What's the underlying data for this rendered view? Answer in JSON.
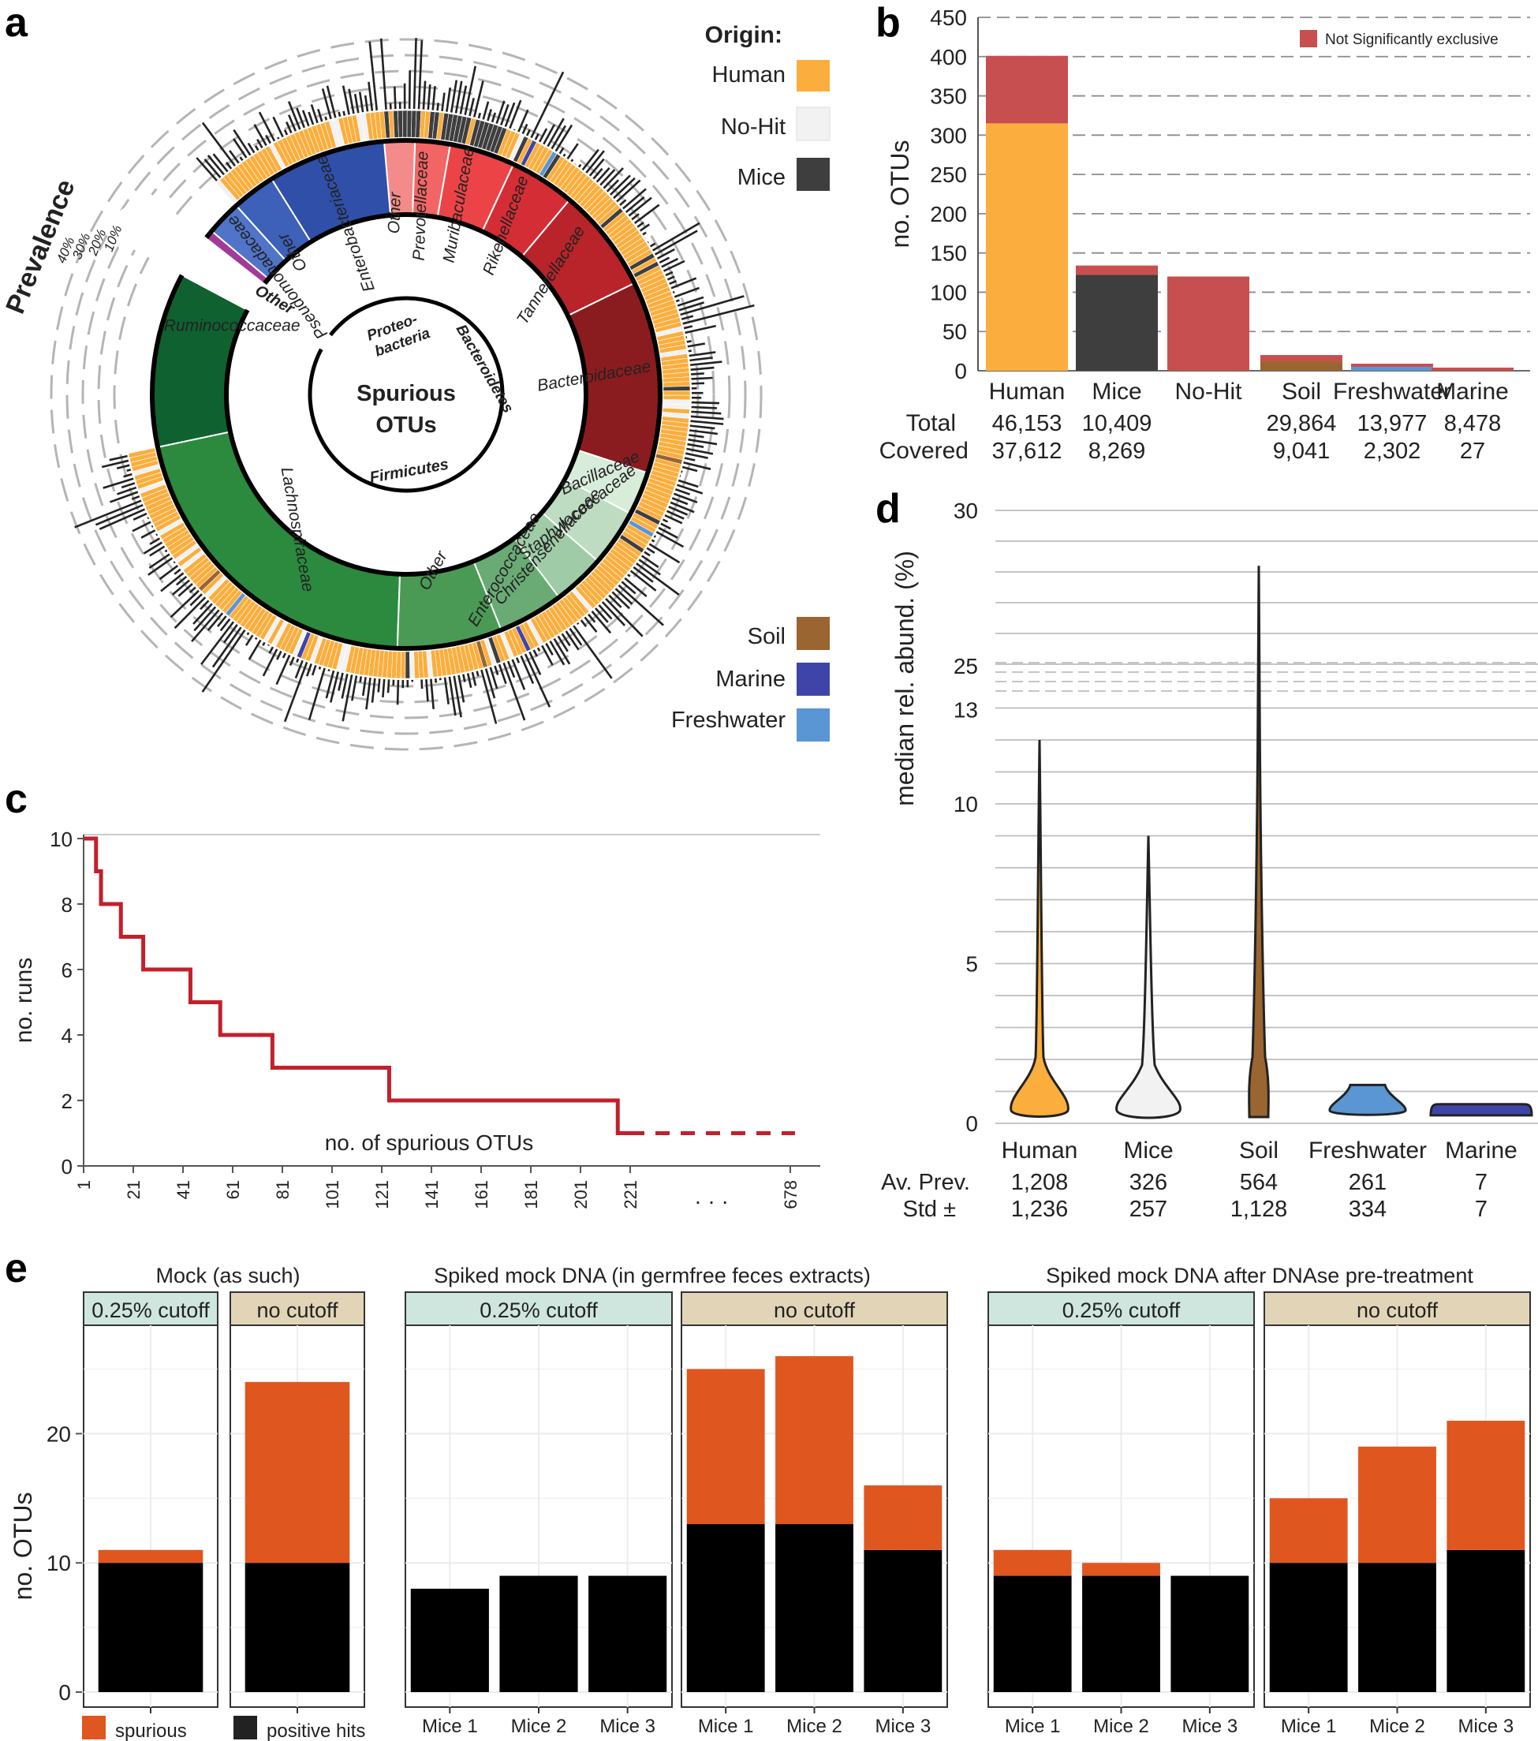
{
  "panel_labels": [
    "a",
    "b",
    "c",
    "d",
    "e"
  ],
  "colors": {
    "human": "#fbae3d",
    "nohit": "#f2f2f2",
    "mice": "#3e3e3e",
    "soil": "#9a6530",
    "marine": "#3f45a8",
    "freshwater": "#5a95d4",
    "not_sig": "#c84f4f",
    "red_line": "#c2202c",
    "spurious": "#e0561f",
    "positive": "#000000",
    "strip_cut": "#cfe6df",
    "strip_nocut": "#e2d5b7"
  },
  "panel_a": {
    "center_title_1": "Spurious",
    "center_title_2": "OTUs",
    "prevalence_label": "Prevalence",
    "prevalence_ticks": [
      "40%",
      "30%",
      "20%",
      "10%"
    ],
    "legend_title": "Origin:",
    "legend_top": [
      {
        "label": "Human",
        "color": "#fbae3d"
      },
      {
        "label": "No-Hit",
        "color": "#f2f2f2"
      },
      {
        "label": "Mice",
        "color": "#3e3e3e"
      }
    ],
    "legend_bottom": [
      {
        "label": "Soil",
        "color": "#9a6530"
      },
      {
        "label": "Marine",
        "color": "#3f45a8"
      },
      {
        "label": "Freshwater",
        "color": "#5a95d4"
      }
    ],
    "phyla": [
      {
        "label": "Proteo-"
      },
      {
        "label": "bacteria"
      },
      {
        "label": "Bacteroidetes"
      },
      {
        "label": "Firmicutes"
      }
    ],
    "families": [
      {
        "label": "Ruminococcaceae",
        "color": "#0f6130"
      },
      {
        "label": "Lachnospiraceae",
        "color": "#2b8a3e"
      },
      {
        "label": "Other",
        "color": "#4a9a55"
      },
      {
        "label": "Enterococcaceae",
        "color": "#6aab75"
      },
      {
        "label": "Christensenellaceae",
        "color": "#9fcca6"
      },
      {
        "label": "Staphylococcaceae",
        "color": "#bddcc1"
      },
      {
        "label": "Bacillaceae",
        "color": "#d8ecda"
      },
      {
        "label": "Bacteroidaceae",
        "color": "#8a1c1f"
      },
      {
        "label": "Tannerellaceae",
        "color": "#b82429"
      },
      {
        "label": "Rikenellaceae",
        "color": "#d52d35"
      },
      {
        "label": "Muribaculaceae",
        "color": "#ec4446"
      },
      {
        "label": "Prevotellaceae",
        "color": "#f26565"
      },
      {
        "label": "Other",
        "color": "#f48b8b"
      },
      {
        "label": "Enterobacteriaceae",
        "color": "#2f4fa8"
      },
      {
        "label": "Other",
        "color": "#3d60b8"
      },
      {
        "label": "Pseudomonadaceae",
        "color": "#4f74c8"
      },
      {
        "label": "Other",
        "color": "#a33a9a"
      }
    ]
  },
  "panel_b": {
    "ylabel": "no. OTUs",
    "legend": "Not Significantly exclusive",
    "ylim": [
      0,
      450
    ],
    "yticks": [
      0,
      50,
      100,
      150,
      200,
      250,
      300,
      350,
      400,
      450
    ],
    "categories": [
      "Human",
      "Mice",
      "No-Hit",
      "Soil",
      "Freshwater",
      "Marine"
    ],
    "series": [
      {
        "name": "exclusive",
        "values": [
          315,
          122,
          0,
          12,
          5,
          0
        ]
      },
      {
        "name": "Not Significantly exclusive",
        "values": [
          86,
          12,
          120,
          8,
          4,
          4
        ]
      }
    ],
    "row_labels": [
      "Total",
      "Covered"
    ],
    "total": [
      "46,153",
      "10,409",
      "",
      "29,864",
      "13,977",
      "8,478"
    ],
    "covered": [
      "37,612",
      "8,269",
      "",
      "9,041",
      "2,302",
      "27"
    ]
  },
  "panel_c": {
    "ylabel": "no. runs",
    "xlabel": "no. of spurious OTUs",
    "yticks": [
      "0",
      "2",
      "4",
      "6",
      "8",
      "10"
    ],
    "xticks": [
      "1",
      "21",
      "41",
      "61",
      "81",
      "101",
      "121",
      "141",
      "161",
      "181",
      "201",
      "221",
      "678"
    ],
    "ellipsis": "· · ·",
    "steps": [
      [
        1,
        10
      ],
      [
        6,
        10
      ],
      [
        6,
        9
      ],
      [
        8,
        9
      ],
      [
        8,
        8
      ],
      [
        16,
        8
      ],
      [
        16,
        7
      ],
      [
        25,
        7
      ],
      [
        25,
        6
      ],
      [
        44,
        6
      ],
      [
        44,
        5
      ],
      [
        56,
        5
      ],
      [
        56,
        4
      ],
      [
        77,
        4
      ],
      [
        77,
        3
      ],
      [
        124,
        3
      ],
      [
        124,
        2
      ],
      [
        216,
        2
      ],
      [
        216,
        1
      ],
      [
        221,
        1
      ]
    ]
  },
  "panel_d": {
    "ylabel": "median rel. abund. (%)",
    "yticks": [
      "0",
      "5",
      "10",
      "13",
      "25",
      "30"
    ],
    "categories": [
      "Human",
      "Mice",
      "Soil",
      "Freshwater",
      "Marine"
    ],
    "row_labels": [
      "Av. Prev.",
      "Std ±"
    ],
    "av_prev": [
      "1,208",
      "326",
      "564",
      "261",
      "7"
    ],
    "std": [
      "1,236",
      "257",
      "1,128",
      "334",
      "7"
    ],
    "max_values": [
      12.0,
      9.0,
      28.0,
      1.2,
      0.6
    ]
  },
  "panel_e": {
    "ylabel": "no. OTUs",
    "yticks": [
      "0",
      "10",
      "20"
    ],
    "ylim": [
      0,
      30
    ],
    "groups": [
      {
        "title": "Mock (as such)",
        "panels": [
          {
            "strip": "0.25% cutoff",
            "bars": [
              {
                "label": "",
                "positive": 10,
                "spurious": 1
              }
            ]
          },
          {
            "strip": "no cutoff",
            "bars": [
              {
                "label": "",
                "positive": 10,
                "spurious": 14
              }
            ]
          }
        ]
      },
      {
        "title": "Spiked mock DNA (in germfree feces extracts)",
        "panels": [
          {
            "strip": "0.25% cutoff",
            "bars": [
              {
                "label": "Mice 1",
                "positive": 8,
                "spurious": 0
              },
              {
                "label": "Mice 2",
                "positive": 9,
                "spurious": 0
              },
              {
                "label": "Mice 3",
                "positive": 9,
                "spurious": 0
              }
            ]
          },
          {
            "strip": "no cutoff",
            "bars": [
              {
                "label": "Mice 1",
                "positive": 13,
                "spurious": 12
              },
              {
                "label": "Mice 2",
                "positive": 13,
                "spurious": 13
              },
              {
                "label": "Mice 3",
                "positive": 11,
                "spurious": 5
              }
            ]
          }
        ]
      },
      {
        "title": "Spiked mock DNA after DNAse pre-treatment",
        "panels": [
          {
            "strip": "0.25% cutoff",
            "bars": [
              {
                "label": "Mice 1",
                "positive": 9,
                "spurious": 2
              },
              {
                "label": "Mice 2",
                "positive": 9,
                "spurious": 1
              },
              {
                "label": "Mice 3",
                "positive": 9,
                "spurious": 0
              }
            ]
          },
          {
            "strip": "no cutoff",
            "bars": [
              {
                "label": "Mice 1",
                "positive": 10,
                "spurious": 5
              },
              {
                "label": "Mice 2",
                "positive": 10,
                "spurious": 9
              },
              {
                "label": "Mice 3",
                "positive": 11,
                "spurious": 10
              }
            ]
          }
        ]
      }
    ],
    "legend": [
      {
        "label": "spurious",
        "color": "#e0561f"
      },
      {
        "label": "positive hits",
        "color": "#222222"
      }
    ]
  },
  "chart_data": [
    {
      "type": "bar",
      "title": "",
      "ylabel": "no. OTUs",
      "categories": [
        "Human",
        "Mice",
        "No-Hit",
        "Soil",
        "Freshwater",
        "Marine"
      ],
      "series": [
        {
          "name": "",
          "values": [
            315,
            122,
            0,
            12,
            5,
            0
          ]
        },
        {
          "name": "Not Significantly exclusive",
          "values": [
            86,
            12,
            120,
            8,
            4,
            4
          ]
        }
      ],
      "ylim": [
        0,
        450
      ]
    },
    {
      "type": "line",
      "title": "",
      "ylabel": "no. runs",
      "xlabel": "no. of spurious OTUs",
      "x": [
        1,
        6,
        8,
        16,
        25,
        44,
        56,
        77,
        124,
        216,
        221,
        678
      ],
      "y": [
        10,
        9,
        8,
        7,
        6,
        5,
        4,
        3,
        2,
        1,
        1,
        1
      ]
    },
    {
      "type": "bar",
      "title": "",
      "ylabel": "no. OTUs",
      "categories": [
        "Mock 0.25% cutoff",
        "Mock no cutoff"
      ],
      "series": [
        {
          "name": "positive hits",
          "values": [
            10,
            10
          ]
        },
        {
          "name": "spurious",
          "values": [
            1,
            14
          ]
        }
      ]
    }
  ]
}
